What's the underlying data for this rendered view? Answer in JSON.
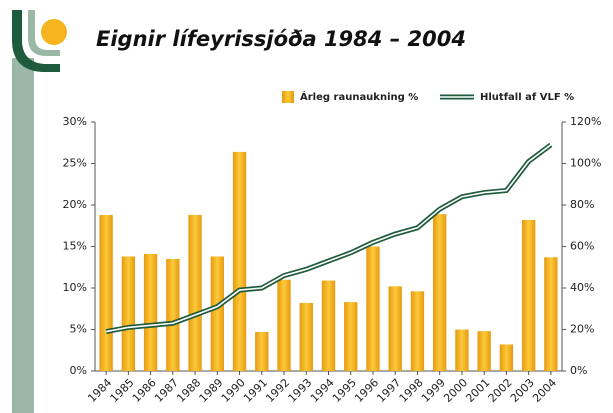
{
  "chart_data": {
    "type": "bar_line",
    "title": "Eignir lífeyrissjóða 1984 – 2004",
    "categories": [
      "1984",
      "1985",
      "1986",
      "1987",
      "1988",
      "1989",
      "1990",
      "1991",
      "1992",
      "1993",
      "1994",
      "1995",
      "1996",
      "1997",
      "1998",
      "1999",
      "2000",
      "2001",
      "2002",
      "2003",
      "2004"
    ],
    "series": [
      {
        "name": "Árleg raunaukning  %",
        "type": "bar",
        "color": "#f0a818",
        "values": [
          18.8,
          13.8,
          14.1,
          13.5,
          18.8,
          13.8,
          26.4,
          4.7,
          11.0,
          8.2,
          10.9,
          8.3,
          15.0,
          10.2,
          9.6,
          18.9,
          5.0,
          4.8,
          3.2,
          18.2,
          13.7
        ]
      },
      {
        "name": "Hlutfall af VLF %",
        "type": "line",
        "axis": "y2",
        "color": "#1e5a3c",
        "values": [
          19,
          21,
          22,
          23,
          27,
          31,
          39,
          40,
          46,
          49,
          53,
          57,
          62,
          66,
          69,
          78,
          84,
          86,
          87,
          101,
          109
        ]
      }
    ],
    "ylim": [
      0,
      30
    ],
    "yticks": [
      {
        "value": 0,
        "label": "0%"
      },
      {
        "value": 5,
        "label": "5%"
      },
      {
        "value": 10,
        "label": "10%"
      },
      {
        "value": 15,
        "label": "15%"
      },
      {
        "value": 20,
        "label": "20%"
      },
      {
        "value": 25,
        "label": "25%"
      },
      {
        "value": 30,
        "label": "30%"
      }
    ],
    "y2lim": [
      0,
      120
    ],
    "y2ticks": [
      {
        "value": 0,
        "label": "0%"
      },
      {
        "value": 20,
        "label": "20%"
      },
      {
        "value": 40,
        "label": "40%"
      },
      {
        "value": 60,
        "label": "60%"
      },
      {
        "value": 80,
        "label": "80%"
      },
      {
        "value": 100,
        "label": "100%"
      },
      {
        "value": 120,
        "label": "120%"
      }
    ],
    "grid": false,
    "legend": "top"
  }
}
